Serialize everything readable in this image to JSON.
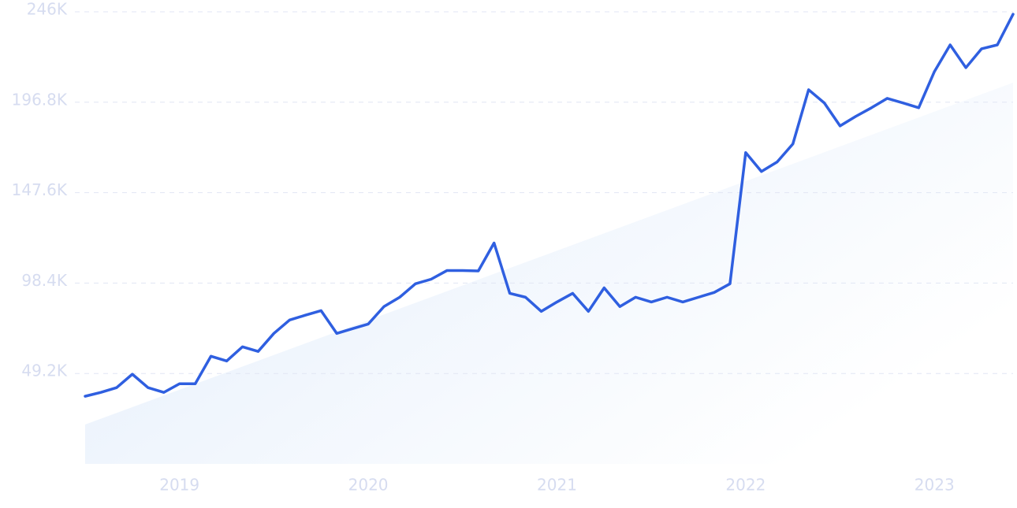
{
  "chart_data": {
    "type": "line",
    "categories": [
      null,
      null,
      null,
      null,
      null,
      null,
      "2019",
      null,
      null,
      null,
      null,
      null,
      null,
      null,
      null,
      null,
      null,
      null,
      "2020",
      null,
      null,
      null,
      null,
      null,
      null,
      null,
      null,
      null,
      null,
      null,
      "2021",
      null,
      null,
      null,
      null,
      null,
      null,
      null,
      null,
      null,
      null,
      null,
      "2022",
      null,
      null,
      null,
      null,
      null,
      null,
      null,
      null,
      null,
      null,
      null,
      "2023",
      null,
      null,
      null,
      null,
      null
    ],
    "series": [
      {
        "color": "#2f5fe0",
        "values": [
          36800,
          38900,
          41500,
          48800,
          41500,
          38900,
          43600,
          43600,
          58600,
          56000,
          63700,
          61200,
          71000,
          78300,
          80900,
          83400,
          71000,
          73600,
          76100,
          85600,
          90700,
          98000,
          100500,
          105200,
          105200,
          105000,
          120200,
          92800,
          90700,
          83000,
          88100,
          92800,
          83000,
          95800,
          85600,
          90700,
          88100,
          90700,
          88100,
          90700,
          93300,
          98000,
          169400,
          159100,
          164300,
          174100,
          203600,
          196400,
          183900,
          189100,
          193800,
          198900,
          196400,
          193800,
          213500,
          228000,
          215600,
          225900,
          228000,
          244700
        ]
      }
    ],
    "ylim": [
      0,
      246000
    ],
    "yticks": [
      {
        "value": 49200,
        "label": "49.2K"
      },
      {
        "value": 98400,
        "label": "98.4K"
      },
      {
        "value": 147600,
        "label": "147.6K"
      },
      {
        "value": 196800,
        "label": "196.8K"
      },
      {
        "value": 246000,
        "label": "246K"
      }
    ],
    "grid": true
  }
}
